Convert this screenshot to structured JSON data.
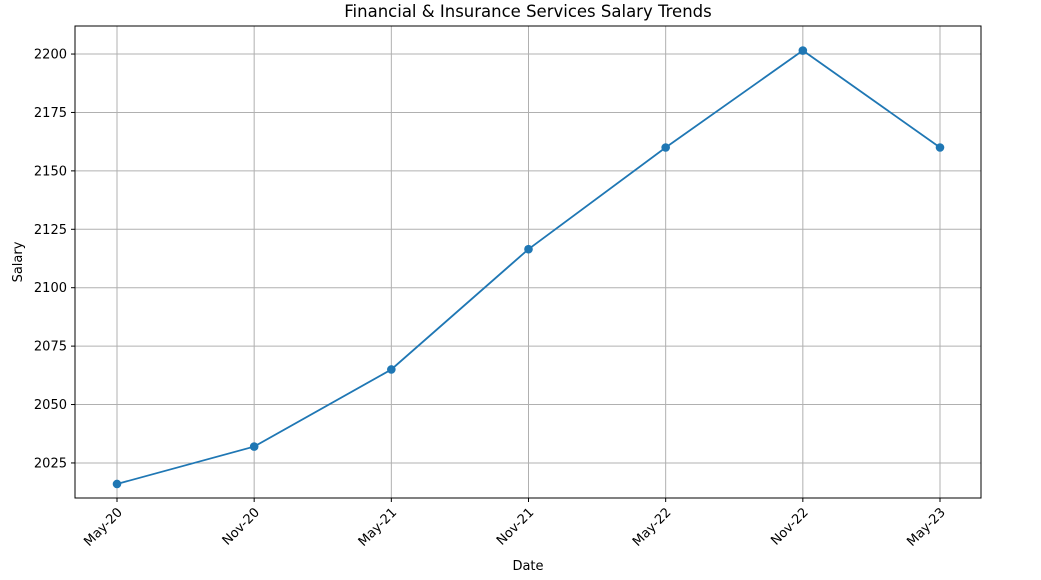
{
  "chart_data": {
    "type": "line",
    "title": "Financial & Insurance Services Salary Trends",
    "xlabel": "Date",
    "ylabel": "Salary",
    "categories": [
      "May-20",
      "Nov-20",
      "May-21",
      "Nov-21",
      "May-22",
      "Nov-22",
      "May-23"
    ],
    "series": [
      {
        "values": [
          2016,
          2032,
          2065,
          2116.5,
          2160,
          2201.5,
          2160
        ]
      }
    ],
    "ylim": [
      2010,
      2212
    ],
    "yticks": [
      2025,
      2050,
      2075,
      2100,
      2125,
      2150,
      2175,
      2200
    ],
    "grid": true,
    "colors": {
      "line": "#1f77b4",
      "grid": "#b0b0b0"
    }
  }
}
